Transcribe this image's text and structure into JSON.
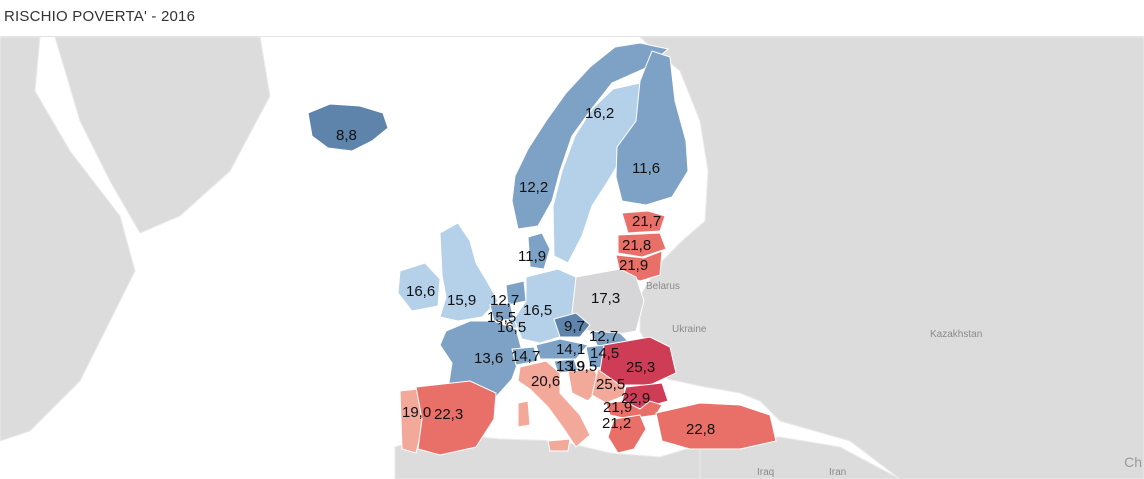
{
  "title": "RISCHIO POVERTA' - 2016",
  "geo_labels": {
    "belarus": "Belarus",
    "ukraine": "Ukraine",
    "kazakhstan": "Kazakhstan",
    "iraq": "Iraq",
    "iran": "Iran",
    "edge": "Ch"
  },
  "colors": {
    "water": "#ffffff",
    "land": "#dcdcdc",
    "border": "#ffffff",
    "no_data": "#d6d5d7",
    "low_dark": "#5f84ab",
    "low_mid": "#7ea2c6",
    "low_light": "#b4d1e9",
    "high_light": "#f3a99a",
    "high_mid": "#e97068",
    "high_dark": "#cf3c55"
  },
  "legend_scale": {
    "min": 8.8,
    "max": 25.5
  },
  "countries": {
    "iceland": "8,8",
    "norway": "12,2",
    "sweden": "16,2",
    "finland": "11,6",
    "estonia": "21,7",
    "latvia": "21,8",
    "lithuania": "21,9",
    "denmark": "11,9",
    "ireland": "16,6",
    "uk": "15,9",
    "netherlands": "12,7",
    "belgium": "15,5",
    "luxembourg": "16,5",
    "germany": "16,5",
    "poland": "17,3",
    "czechia": "9,7",
    "slovakia": "12,7",
    "austria": "14,1",
    "hungary": "14,5",
    "slovenia": "13,9",
    "croatia": "19,5",
    "france": "13,6",
    "switzerland": "14,7",
    "italy": "20,6",
    "romania": "25,3",
    "bulgaria": "25,5",
    "serbia": "22,9",
    "macedonia": "21,9",
    "greece": "21,2",
    "portugal": "19,0",
    "spain": "22,3",
    "turkey": "22,8"
  }
}
